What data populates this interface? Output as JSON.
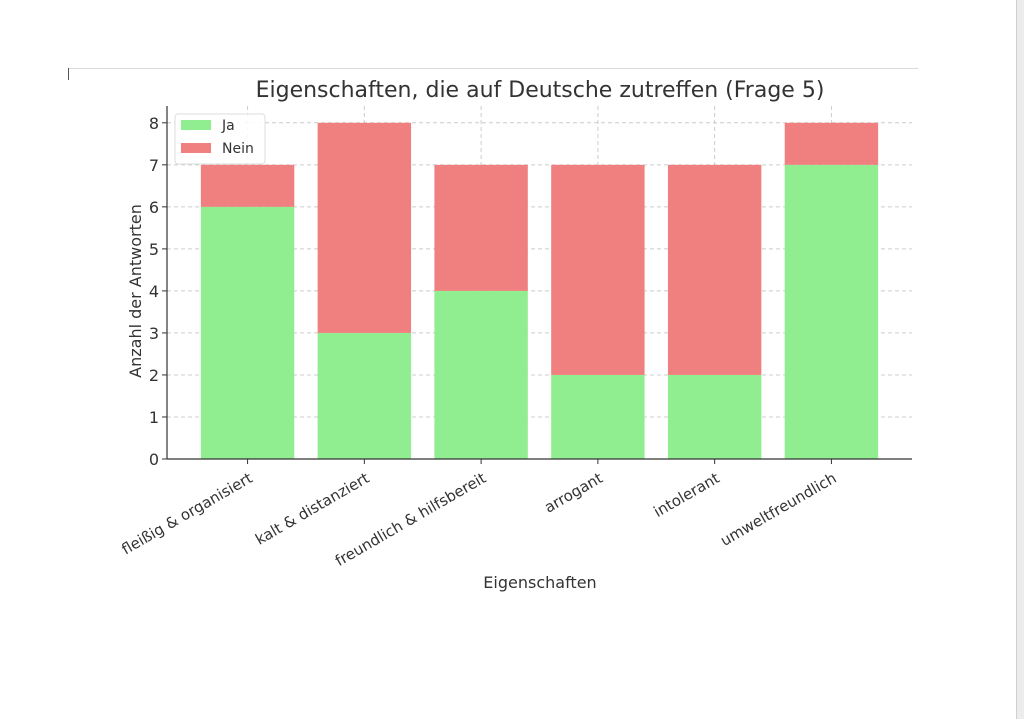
{
  "chart_data": {
    "type": "bar",
    "stacked": true,
    "title": "Eigenschaften, die auf Deutsche zutreffen (Frage 5)",
    "xlabel": "Eigenschaften",
    "ylabel": "Anzahl der Antworten",
    "categories": [
      "fleißig & organisiert",
      "kalt & distanziert",
      "freundlich & hilfsbereit",
      "arrogant",
      "intolerant",
      "umweltfreundlich"
    ],
    "series": [
      {
        "name": "Ja",
        "values": [
          6,
          3,
          4,
          2,
          2,
          7
        ],
        "color": "#90ee90"
      },
      {
        "name": "Nein",
        "values": [
          1,
          5,
          3,
          5,
          5,
          1
        ],
        "color": "#f08080"
      }
    ],
    "ylim": [
      0,
      8.4
    ],
    "yticks": [
      0,
      1,
      2,
      3,
      4,
      5,
      6,
      7,
      8
    ],
    "grid": true,
    "legend": "top-left"
  }
}
